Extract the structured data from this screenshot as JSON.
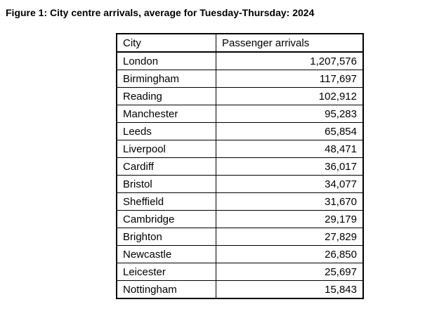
{
  "figure": {
    "caption": "Figure 1: City centre arrivals, average for Tuesday-Thursday: 2024"
  },
  "chart_data": {
    "type": "table",
    "title": "Figure 1: City centre arrivals, average for Tuesday-Thursday: 2024",
    "columns": [
      "City",
      "Passenger arrivals"
    ],
    "rows": [
      {
        "city": "London",
        "arrivals": 1207576,
        "display": "1,207,576"
      },
      {
        "city": "Birmingham",
        "arrivals": 117697,
        "display": "117,697"
      },
      {
        "city": "Reading",
        "arrivals": 102912,
        "display": "102,912"
      },
      {
        "city": "Manchester",
        "arrivals": 95283,
        "display": "95,283"
      },
      {
        "city": "Leeds",
        "arrivals": 65854,
        "display": "65,854"
      },
      {
        "city": "Liverpool",
        "arrivals": 48471,
        "display": "48,471"
      },
      {
        "city": "Cardiff",
        "arrivals": 36017,
        "display": "36,017"
      },
      {
        "city": "Bristol",
        "arrivals": 34077,
        "display": "34,077"
      },
      {
        "city": "Sheffield",
        "arrivals": 31670,
        "display": "31,670"
      },
      {
        "city": "Cambridge",
        "arrivals": 29179,
        "display": "29,179"
      },
      {
        "city": "Brighton",
        "arrivals": 27829,
        "display": "27,829"
      },
      {
        "city": "Newcastle",
        "arrivals": 26850,
        "display": "26,850"
      },
      {
        "city": "Leicester",
        "arrivals": 25697,
        "display": "25,697"
      },
      {
        "city": "Nottingham",
        "arrivals": 15843,
        "display": "15,843"
      }
    ]
  }
}
